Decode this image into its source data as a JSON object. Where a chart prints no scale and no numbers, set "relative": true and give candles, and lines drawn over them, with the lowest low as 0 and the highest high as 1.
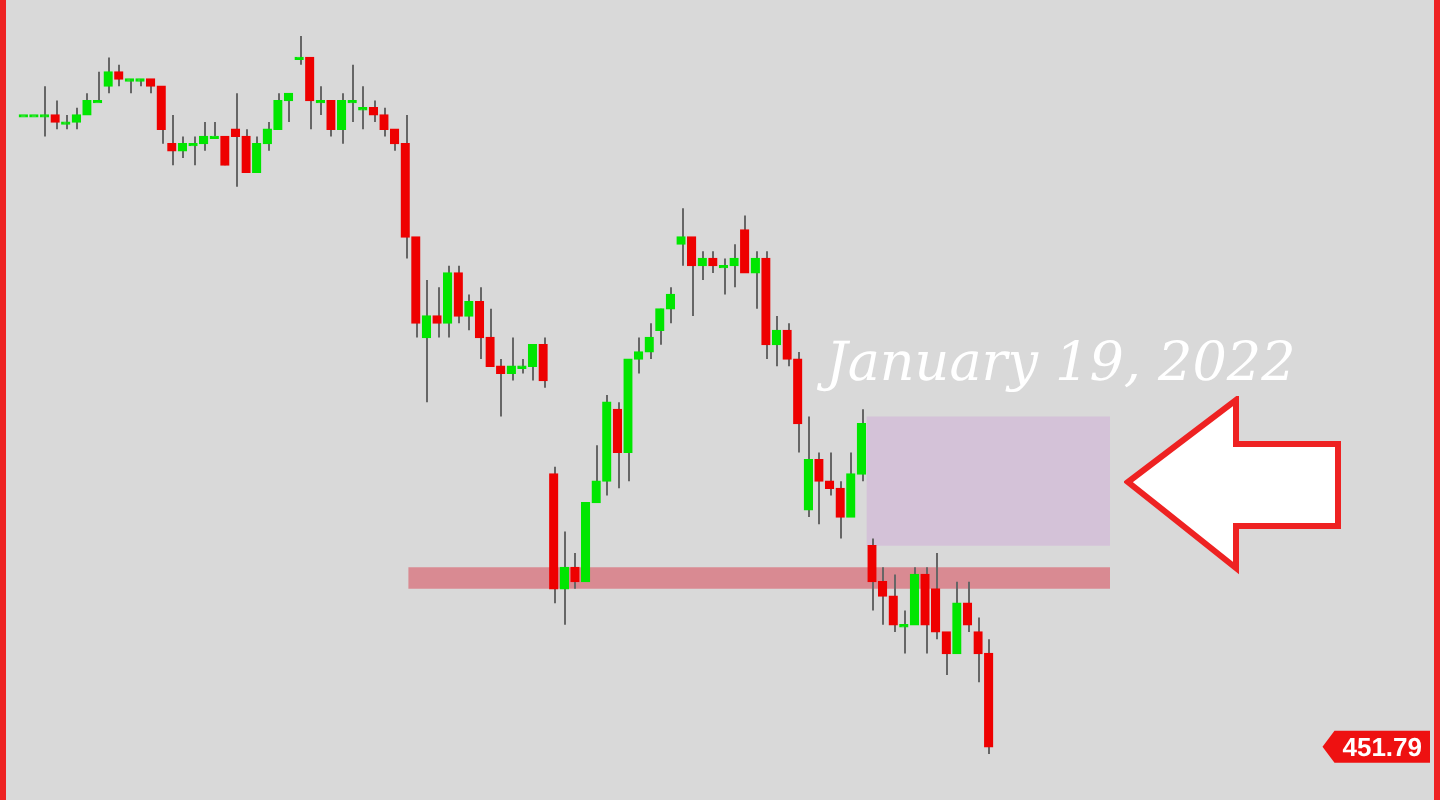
{
  "chart_data": {
    "type": "candlestick",
    "relative": true,
    "categories": [
      null,
      null,
      null,
      null,
      null,
      null,
      null,
      null,
      null,
      null,
      null,
      null,
      null,
      null,
      null,
      null,
      null,
      null,
      null,
      null,
      null,
      null,
      null,
      null,
      null,
      null,
      null,
      null,
      null,
      null,
      null,
      null,
      null,
      null,
      null,
      null,
      null,
      null,
      null,
      null,
      null,
      null,
      null,
      null,
      null,
      null,
      null,
      null,
      null,
      null,
      null,
      null,
      null,
      null,
      null,
      null,
      null,
      null,
      null,
      null,
      null,
      null,
      null,
      null,
      null,
      null,
      null,
      null,
      null,
      null,
      null,
      null,
      null,
      null,
      null,
      null,
      null,
      null,
      null,
      null,
      null,
      null,
      null,
      null,
      null,
      null,
      null,
      null,
      null,
      null,
      null,
      null
    ],
    "ohlc": [
      [
        0.89,
        0.89,
        0.89,
        0.89
      ],
      [
        0.89,
        0.89,
        0.89,
        0.89
      ],
      [
        0.89,
        0.93,
        0.86,
        0.89
      ],
      [
        0.89,
        0.91,
        0.87,
        0.88
      ],
      [
        0.88,
        0.89,
        0.87,
        0.88
      ],
      [
        0.88,
        0.9,
        0.87,
        0.89
      ],
      [
        0.89,
        0.92,
        0.89,
        0.91
      ],
      [
        0.91,
        0.95,
        0.91,
        0.91
      ],
      [
        0.93,
        0.97,
        0.92,
        0.95
      ],
      [
        0.95,
        0.96,
        0.93,
        0.94
      ],
      [
        0.94,
        0.94,
        0.92,
        0.94
      ],
      [
        0.94,
        0.94,
        0.93,
        0.94
      ],
      [
        0.94,
        0.94,
        0.92,
        0.93
      ],
      [
        0.93,
        0.93,
        0.85,
        0.87
      ],
      [
        0.85,
        0.89,
        0.82,
        0.84
      ],
      [
        0.84,
        0.86,
        0.83,
        0.85
      ],
      [
        0.85,
        0.86,
        0.82,
        0.85
      ],
      [
        0.85,
        0.88,
        0.84,
        0.86
      ],
      [
        0.86,
        0.88,
        0.86,
        0.86
      ],
      [
        0.86,
        0.86,
        0.82,
        0.82
      ],
      [
        0.87,
        0.92,
        0.79,
        0.86
      ],
      [
        0.86,
        0.87,
        0.81,
        0.81
      ],
      [
        0.81,
        0.86,
        0.81,
        0.85
      ],
      [
        0.85,
        0.88,
        0.84,
        0.87
      ],
      [
        0.87,
        0.92,
        0.87,
        0.91
      ],
      [
        0.91,
        0.92,
        0.88,
        0.92
      ],
      [
        0.97,
        1.0,
        0.96,
        0.97
      ],
      [
        0.97,
        0.97,
        0.87,
        0.91
      ],
      [
        0.91,
        0.93,
        0.89,
        0.91
      ],
      [
        0.91,
        0.91,
        0.86,
        0.87
      ],
      [
        0.87,
        0.92,
        0.85,
        0.91
      ],
      [
        0.91,
        0.96,
        0.88,
        0.91
      ],
      [
        0.9,
        0.93,
        0.87,
        0.9
      ],
      [
        0.9,
        0.91,
        0.88,
        0.89
      ],
      [
        0.89,
        0.9,
        0.86,
        0.87
      ],
      [
        0.87,
        0.87,
        0.84,
        0.85
      ],
      [
        0.85,
        0.89,
        0.69,
        0.72
      ],
      [
        0.72,
        0.72,
        0.58,
        0.6
      ],
      [
        0.58,
        0.66,
        0.49,
        0.61
      ],
      [
        0.61,
        0.65,
        0.58,
        0.6
      ],
      [
        0.6,
        0.68,
        0.58,
        0.67
      ],
      [
        0.67,
        0.68,
        0.6,
        0.61
      ],
      [
        0.61,
        0.64,
        0.59,
        0.63
      ],
      [
        0.63,
        0.65,
        0.55,
        0.58
      ],
      [
        0.58,
        0.62,
        0.54,
        0.54
      ],
      [
        0.54,
        0.55,
        0.47,
        0.53
      ],
      [
        0.53,
        0.58,
        0.52,
        0.54
      ],
      [
        0.54,
        0.55,
        0.53,
        0.54
      ],
      [
        0.54,
        0.57,
        0.52,
        0.57
      ],
      [
        0.57,
        0.58,
        0.51,
        0.52
      ],
      [
        0.39,
        0.4,
        0.21,
        0.23
      ],
      [
        0.23,
        0.31,
        0.18,
        0.26
      ],
      [
        0.26,
        0.28,
        0.23,
        0.24
      ],
      [
        0.24,
        0.35,
        0.24,
        0.35
      ],
      [
        0.35,
        0.43,
        0.35,
        0.38
      ],
      [
        0.38,
        0.5,
        0.36,
        0.49
      ],
      [
        0.48,
        0.49,
        0.37,
        0.42
      ],
      [
        0.42,
        0.55,
        0.38,
        0.55
      ],
      [
        0.55,
        0.58,
        0.53,
        0.56
      ],
      [
        0.56,
        0.6,
        0.55,
        0.58
      ],
      [
        0.59,
        0.62,
        0.57,
        0.62
      ],
      [
        0.62,
        0.65,
        0.6,
        0.64
      ],
      [
        0.71,
        0.76,
        0.68,
        0.72
      ],
      [
        0.72,
        0.72,
        0.61,
        0.68
      ],
      [
        0.68,
        0.7,
        0.66,
        0.69
      ],
      [
        0.69,
        0.7,
        0.67,
        0.68
      ],
      [
        0.68,
        0.69,
        0.64,
        0.68
      ],
      [
        0.68,
        0.71,
        0.65,
        0.69
      ],
      [
        0.73,
        0.75,
        0.67,
        0.67
      ],
      [
        0.67,
        0.7,
        0.62,
        0.69
      ],
      [
        0.69,
        0.7,
        0.55,
        0.57
      ],
      [
        0.57,
        0.61,
        0.54,
        0.59
      ],
      [
        0.59,
        0.6,
        0.54,
        0.55
      ],
      [
        0.55,
        0.56,
        0.42,
        0.46
      ],
      [
        0.34,
        0.47,
        0.33,
        0.41
      ],
      [
        0.41,
        0.42,
        0.32,
        0.38
      ],
      [
        0.38,
        0.42,
        0.36,
        0.37
      ],
      [
        0.37,
        0.38,
        0.3,
        0.33
      ],
      [
        0.33,
        0.42,
        0.33,
        0.39
      ],
      [
        0.39,
        0.48,
        0.38,
        0.46
      ],
      [
        0.29,
        0.3,
        0.2,
        0.24
      ],
      [
        0.24,
        0.26,
        0.18,
        0.22
      ],
      [
        0.22,
        0.25,
        0.17,
        0.18
      ],
      [
        0.18,
        0.2,
        0.14,
        0.18
      ],
      [
        0.18,
        0.26,
        0.18,
        0.25
      ],
      [
        0.25,
        0.26,
        0.14,
        0.18
      ],
      [
        0.23,
        0.28,
        0.16,
        0.17
      ],
      [
        0.17,
        0.17,
        0.11,
        0.14
      ],
      [
        0.14,
        0.24,
        0.14,
        0.21
      ],
      [
        0.21,
        0.24,
        0.17,
        0.18
      ],
      [
        0.17,
        0.19,
        0.1,
        0.14
      ],
      [
        0.14,
        0.16,
        0.0,
        0.01
      ]
    ],
    "bands": [
      {
        "axis": "y",
        "from": 0.23,
        "to": 0.26,
        "color": "#d98a92"
      },
      {
        "axis": "y",
        "from": 0.29,
        "to": 0.47,
        "color": "#d4c2d8"
      }
    ],
    "annotations": [
      "January 19, 2022",
      "451.79"
    ]
  }
}
